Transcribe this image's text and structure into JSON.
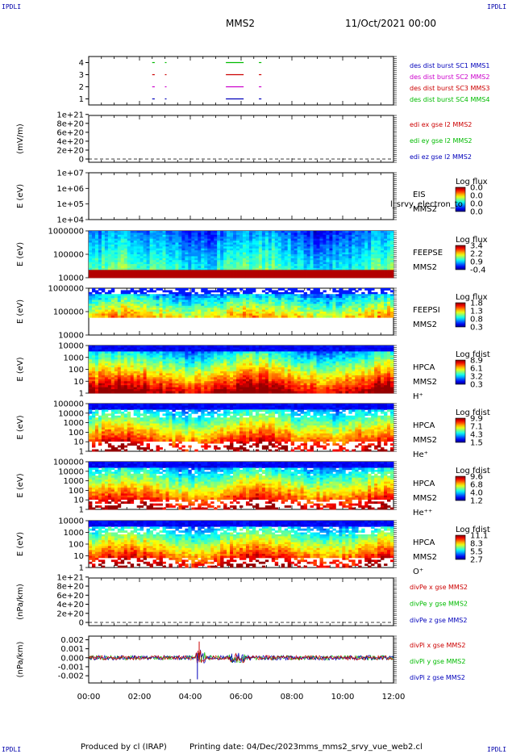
{
  "corner_label": "IPDLI",
  "header": {
    "spacecraft": "MMS2",
    "date": "11/Oct/2021 00:00"
  },
  "footer": {
    "produced": "Produced by cl (IRAP)",
    "printing": "Printing date: 04/Dec/2023",
    "file": "mms_mms2_srvy_vue_web2.cl"
  },
  "x_axis": {
    "ticks": [
      "00:00",
      "02:00",
      "04:00",
      "06:00",
      "08:00",
      "10:00",
      "12:00"
    ]
  },
  "colors": {
    "red": "#cc0000",
    "green": "#00bb00",
    "blue": "#0000bb",
    "magenta": "#cc00cc"
  },
  "chart_data": [
    {
      "type": "line",
      "ylim": [
        0.5,
        4.5
      ],
      "yticks": [
        "4",
        "3",
        "2",
        "1"
      ],
      "legend": [
        {
          "text": "des dist burst SC1 MMS1",
          "color": "#0000bb"
        },
        {
          "text": "des dist burst SC2 MMS2",
          "color": "#cc00cc"
        },
        {
          "text": "des dist burst SC3 MMS3",
          "color": "#cc0000"
        },
        {
          "text": "des dist burst SC4 MMS4",
          "color": "#00bb00"
        }
      ],
      "series": [
        {
          "level": 4,
          "color": "#00bb00",
          "segments": [
            [
              2.5,
              2.6
            ],
            [
              3.0,
              3.05
            ],
            [
              5.4,
              6.1
            ],
            [
              6.7,
              6.8
            ]
          ]
        },
        {
          "level": 3,
          "color": "#cc0000",
          "segments": [
            [
              2.5,
              2.6
            ],
            [
              3.0,
              3.05
            ],
            [
              5.4,
              6.1
            ],
            [
              6.7,
              6.8
            ]
          ]
        },
        {
          "level": 2,
          "color": "#cc00cc",
          "segments": [
            [
              2.5,
              2.6
            ],
            [
              3.0,
              3.05
            ],
            [
              5.4,
              6.1
            ],
            [
              6.7,
              6.8
            ]
          ]
        },
        {
          "level": 1,
          "color": "#0000bb",
          "segments": [
            [
              2.5,
              2.6
            ],
            [
              3.0,
              3.05
            ],
            [
              5.4,
              6.1
            ],
            [
              6.7,
              6.8
            ]
          ]
        }
      ]
    },
    {
      "type": "line",
      "ylabel": "(mV/m)",
      "yticks": [
        "1e+21",
        "8e+20",
        "6e+20",
        "4e+20",
        "2e+20",
        "0"
      ],
      "ylim": [
        0,
        1.05e+21
      ],
      "legend": [
        {
          "text": "edi ex gse l2 MMS2",
          "color": "#cc0000"
        },
        {
          "text": "edi ey gse l2 MMS2",
          "color": "#00bb00"
        },
        {
          "text": "edi ez gse l2 MMS2",
          "color": "#0000bb"
        }
      ]
    },
    {
      "type": "heatmap",
      "ylabel": "E (eV)",
      "yticks": [
        "1e+07",
        "1e+06",
        "1e+05",
        "1e+04"
      ],
      "label_lines": [
        "EIS",
        "MMS2"
      ],
      "overlay_text": "l_srvy_electron_to",
      "colorbar": {
        "title": "Log flux",
        "ticks": [
          "0.0",
          "0.0",
          "0.0",
          "0.0"
        ]
      }
    },
    {
      "type": "heatmap",
      "ylabel": "E (eV)",
      "yticks": [
        "1000000",
        "100000",
        "10000"
      ],
      "label_lines": [
        "FEEPSE",
        "MMS2"
      ],
      "colorbar": {
        "title": "Log flux",
        "ticks": [
          "3.4",
          "2.2",
          "0.9",
          "-0.4"
        ]
      }
    },
    {
      "type": "heatmap",
      "ylabel": "E (eV)",
      "yticks": [
        "1000000",
        "100000",
        "10000"
      ],
      "label_lines": [
        "FEEPSI",
        "MMS2"
      ],
      "colorbar": {
        "title": "Log flux",
        "ticks": [
          "1.8",
          "1.3",
          "0.8",
          "0.3"
        ]
      }
    },
    {
      "type": "heatmap",
      "ylabel": "E (eV)",
      "yticks": [
        "10000",
        "1000",
        "100",
        "10",
        "1"
      ],
      "label_lines": [
        "HPCA",
        "MMS2",
        "H⁺"
      ],
      "colorbar": {
        "title": "Log fdist",
        "ticks": [
          "8.9",
          "6.1",
          "3.2",
          "0.3"
        ]
      }
    },
    {
      "type": "heatmap",
      "ylabel": "E (eV)",
      "yticks": [
        "100000",
        "10000",
        "1000",
        "100",
        "10",
        "1"
      ],
      "label_lines": [
        "HPCA",
        "MMS2",
        "He⁺"
      ],
      "colorbar": {
        "title": "Log fdist",
        "ticks": [
          "9.9",
          "7.1",
          "4.3",
          "1.5"
        ]
      }
    },
    {
      "type": "heatmap",
      "ylabel": "E (eV)",
      "yticks": [
        "100000",
        "10000",
        "1000",
        "100",
        "10",
        "1"
      ],
      "label_lines": [
        "HPCA",
        "MMS2",
        "He⁺⁺"
      ],
      "colorbar": {
        "title": "Log fdist",
        "ticks": [
          "9.6",
          "6.8",
          "4.0",
          "1.2"
        ]
      }
    },
    {
      "type": "heatmap",
      "ylabel": "E (eV)",
      "yticks": [
        "10000",
        "1000",
        "100",
        "10",
        "1"
      ],
      "label_lines": [
        "HPCA",
        "MMS2",
        "O⁺"
      ],
      "colorbar": {
        "title": "Log fdist",
        "ticks": [
          "11.1",
          "8.3",
          "5.5",
          "2.7"
        ]
      }
    },
    {
      "type": "line",
      "ylabel": "(nPa/km)",
      "yticks": [
        "1e+21",
        "8e+20",
        "6e+20",
        "4e+20",
        "2e+20",
        "0"
      ],
      "ylim": [
        0,
        1.05e+21
      ],
      "legend": [
        {
          "text": "divPe x gse MMS2",
          "color": "#cc0000"
        },
        {
          "text": "divPe y gse MMS2",
          "color": "#00bb00"
        },
        {
          "text": "divPe z gse MMS2",
          "color": "#0000bb"
        }
      ]
    },
    {
      "type": "line",
      "ylabel": "(nPa/km)",
      "yticks": [
        "0.002",
        "0.001",
        "0.000",
        "-0.001",
        "-0.002"
      ],
      "ylim": [
        -0.0028,
        0.0024
      ],
      "legend": [
        {
          "text": "divPi x gse MMS2",
          "color": "#cc0000"
        },
        {
          "text": "divPi y gse MMS2",
          "color": "#00bb00"
        },
        {
          "text": "divPi z gse MMS2",
          "color": "#0000bb"
        }
      ]
    }
  ]
}
